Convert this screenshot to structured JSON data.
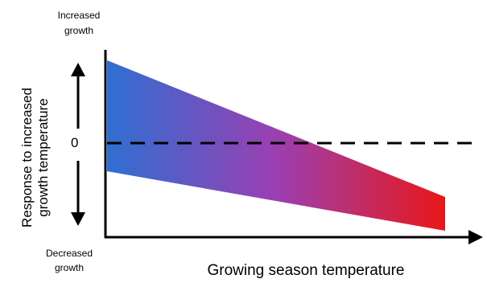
{
  "labels": {
    "top": [
      "Increased",
      "growth"
    ],
    "bottom": [
      "Decreased",
      "growth"
    ],
    "zero": "0",
    "x_axis": "Growing season temperature",
    "y_axis": [
      "Response to increased",
      "growth temperature"
    ]
  },
  "colors": {
    "gradient_start": "#2f6fd2",
    "gradient_mid": "#9b3fb2",
    "gradient_end": "#e81818",
    "axis": "#000000"
  }
}
